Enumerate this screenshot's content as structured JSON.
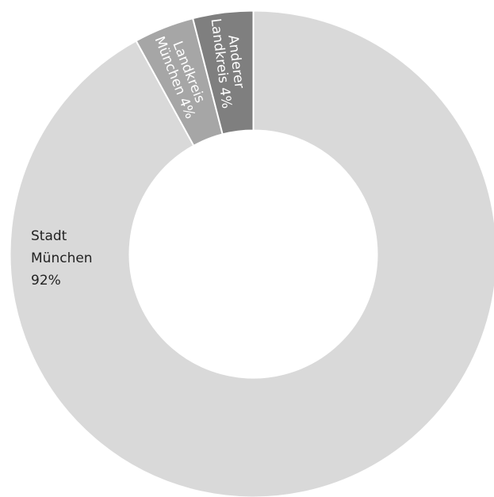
{
  "chart_data": {
    "type": "pie",
    "donut": true,
    "slices": [
      {
        "label": [
          "Stadt",
          "München",
          "92%"
        ],
        "value": 92,
        "color": "#d9d9d9"
      },
      {
        "label": [
          "Landkreis",
          "München 4%"
        ],
        "value": 4,
        "color": "#a6a6a6"
      },
      {
        "label": [
          "Anderer",
          "Landkreis 4%"
        ],
        "value": 4,
        "color": "#7f7f7f"
      }
    ]
  }
}
